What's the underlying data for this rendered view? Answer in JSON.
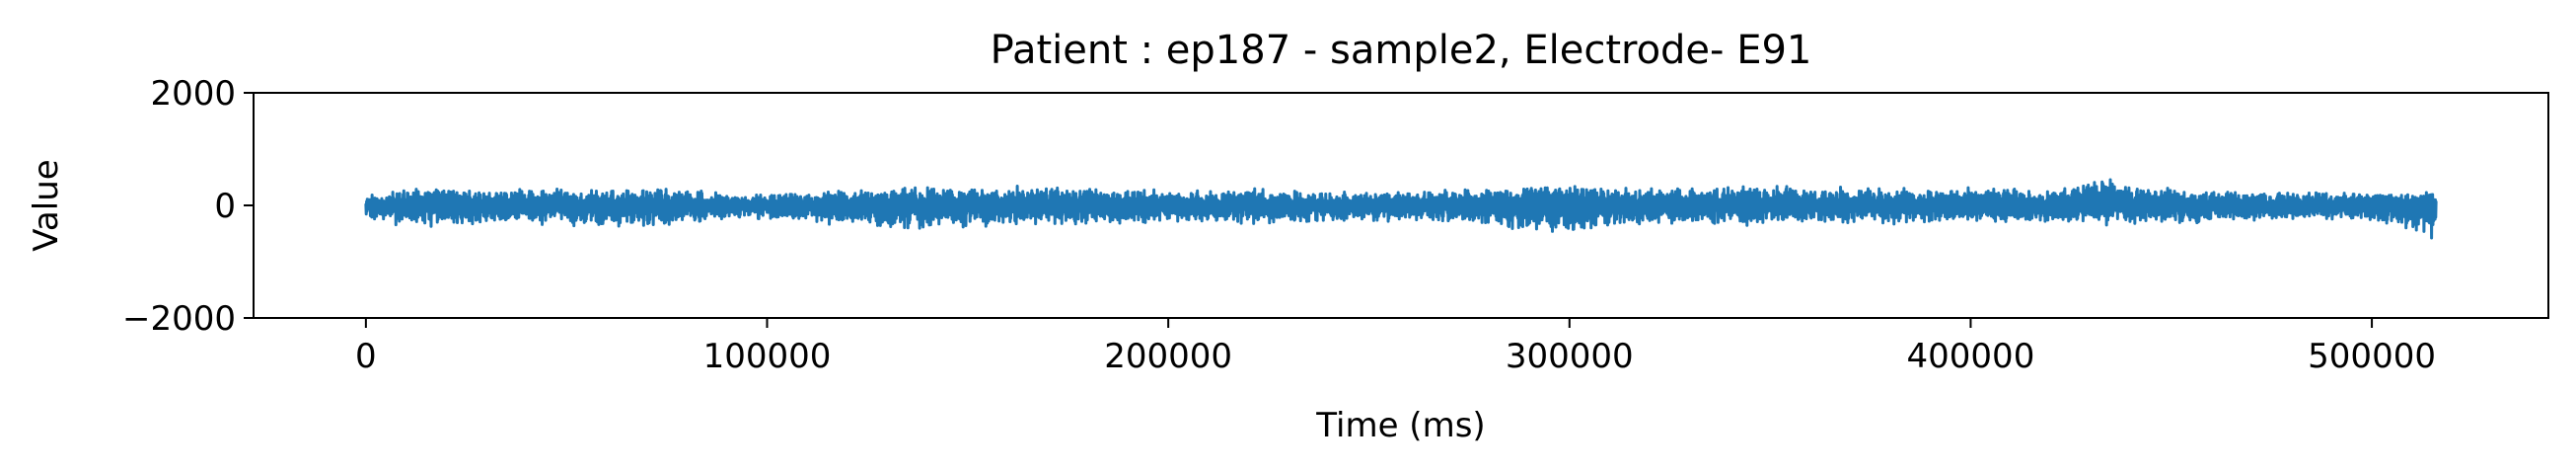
{
  "chart_data": {
    "type": "line",
    "title": "Patient : ep187 - sample2, Electrode- E91",
    "xlabel": "Time (ms)",
    "ylabel": "Value",
    "xlim": [
      -28000,
      544000
    ],
    "ylim": [
      -2000,
      2000
    ],
    "x_ticks": [
      0,
      100000,
      200000,
      300000,
      400000,
      500000
    ],
    "x_tick_labels": [
      "0",
      "100000",
      "200000",
      "300000",
      "400000",
      "500000"
    ],
    "y_ticks": [
      -2000,
      0,
      2000
    ],
    "y_tick_labels": [
      "−2000",
      "0",
      "2000"
    ],
    "grid": false,
    "series": [
      {
        "color": "#1f77b4",
        "x_range": [
          0,
          516000
        ],
        "envelope": {
          "x": [
            0,
            10000,
            20000,
            40000,
            60000,
            80000,
            100000,
            120000,
            140000,
            160000,
            180000,
            200000,
            220000,
            240000,
            260000,
            280000,
            295000,
            310000,
            330000,
            345000,
            360000,
            380000,
            400000,
            420000,
            433000,
            445000,
            460000,
            480000,
            500000,
            516000
          ],
          "upper": [
            200,
            380,
            350,
            300,
            330,
            320,
            200,
            300,
            340,
            380,
            300,
            280,
            330,
            250,
            260,
            300,
            420,
            350,
            300,
            380,
            350,
            330,
            320,
            300,
            480,
            350,
            260,
            250,
            260,
            280
          ],
          "lower": [
            -250,
            -400,
            -380,
            -350,
            -400,
            -350,
            -250,
            -380,
            -450,
            -380,
            -350,
            -300,
            -370,
            -300,
            -300,
            -350,
            -580,
            -400,
            -350,
            -380,
            -360,
            -350,
            -330,
            -300,
            -360,
            -370,
            -300,
            -280,
            -300,
            -700
          ]
        }
      }
    ]
  }
}
